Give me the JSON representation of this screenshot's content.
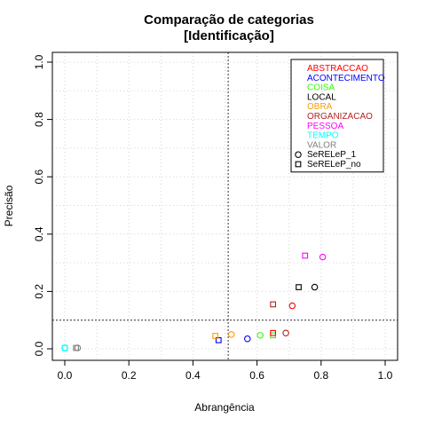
{
  "chart_data": {
    "type": "scatter",
    "title": "Comparação de categorias",
    "subtitle": "[Identificação]",
    "xlabel": "Abrangência",
    "ylabel": "Precisão",
    "xlim": [
      0,
      1
    ],
    "ylim": [
      0,
      1
    ],
    "xticks": [
      "0.0",
      "0.2",
      "0.4",
      "0.6",
      "0.8",
      "1.0"
    ],
    "yticks": [
      "0.0",
      "0.2",
      "0.4",
      "0.6",
      "0.8",
      "1.0"
    ],
    "grid": true,
    "legend_position": "top-right",
    "reference_lines": {
      "vertical_x": 0.51,
      "horizontal_y": 0.1
    },
    "categories": [
      {
        "name": "ABSTRACCAO",
        "color": "#ff0000"
      },
      {
        "name": "ACONTECIMENTO",
        "color": "#0000ff"
      },
      {
        "name": "COISA",
        "color": "#33ff00"
      },
      {
        "name": "LOCAL",
        "color": "#000000"
      },
      {
        "name": "OBRA",
        "color": "#ff9900"
      },
      {
        "name": "ORGANIZACAO",
        "color": "#b22222"
      },
      {
        "name": "PESSOA",
        "color": "#ff00ff"
      },
      {
        "name": "TEMPO",
        "color": "#00ffff"
      },
      {
        "name": "VALOR",
        "color": "#808080"
      }
    ],
    "systems": [
      {
        "name": "SeRELeP_1",
        "marker": "circle"
      },
      {
        "name": "SeRELeP_no",
        "marker": "square"
      }
    ],
    "series": [
      {
        "system": "SeRELeP_1",
        "category": "ACONTECIMENTO",
        "x": 0.57,
        "y": 0.035
      },
      {
        "system": "SeRELeP_1",
        "category": "COISA",
        "x": 0.61,
        "y": 0.047
      },
      {
        "system": "SeRELeP_1",
        "category": "LOCAL",
        "x": 0.78,
        "y": 0.215
      },
      {
        "system": "SeRELeP_1",
        "category": "OBRA",
        "x": 0.52,
        "y": 0.05
      },
      {
        "system": "SeRELeP_1",
        "category": "ORGANIZACAO",
        "x": 0.69,
        "y": 0.055
      },
      {
        "system": "SeRELeP_1",
        "category": "ABSTRACCAO",
        "x": 0.71,
        "y": 0.15
      },
      {
        "system": "SeRELeP_1",
        "category": "PESSOA",
        "x": 0.805,
        "y": 0.32
      },
      {
        "system": "SeRELeP_1",
        "category": "TEMPO",
        "x": 0.0,
        "y": 0.003
      },
      {
        "system": "SeRELeP_1",
        "category": "VALOR",
        "x": 0.04,
        "y": 0.003
      },
      {
        "system": "SeRELeP_no",
        "category": "ACONTECIMENTO",
        "x": 0.48,
        "y": 0.03
      },
      {
        "system": "SeRELeP_no",
        "category": "COISA",
        "x": 0.65,
        "y": 0.047
      },
      {
        "system": "SeRELeP_no",
        "category": "LOCAL",
        "x": 0.73,
        "y": 0.215
      },
      {
        "system": "SeRELeP_no",
        "category": "OBRA",
        "x": 0.47,
        "y": 0.045
      },
      {
        "system": "SeRELeP_no",
        "category": "ORGANIZACAO",
        "x": 0.65,
        "y": 0.155
      },
      {
        "system": "SeRELeP_no",
        "category": "ABSTRACCAO",
        "x": 0.65,
        "y": 0.055
      },
      {
        "system": "SeRELeP_no",
        "category": "PESSOA",
        "x": 0.75,
        "y": 0.325
      },
      {
        "system": "SeRELeP_no",
        "category": "TEMPO",
        "x": 0.0,
        "y": 0.003
      },
      {
        "system": "SeRELeP_no",
        "category": "VALOR",
        "x": 0.035,
        "y": 0.003
      }
    ]
  }
}
